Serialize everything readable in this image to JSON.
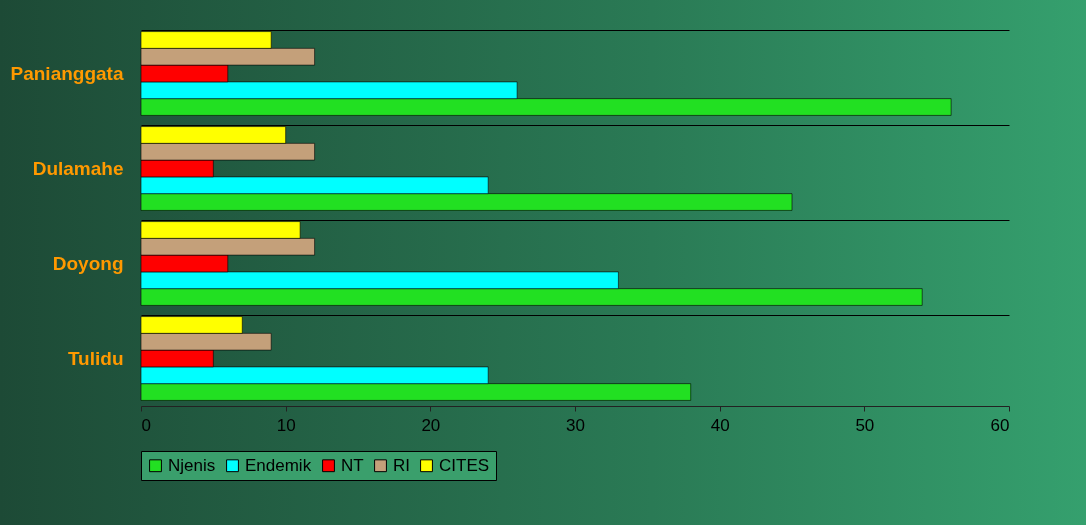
{
  "chart_data": {
    "type": "bar",
    "orientation": "horizontal",
    "categories": [
      "Panianggata",
      "Dulamahe",
      "Doyong",
      "Tulidu"
    ],
    "series": [
      {
        "name": "Njenis",
        "color": "#22e022",
        "values": [
          56,
          45,
          54,
          38
        ]
      },
      {
        "name": "Endemik",
        "color": "#00ffff",
        "values": [
          26,
          24,
          33,
          24
        ]
      },
      {
        "name": "NT",
        "color": "#ff0000",
        "values": [
          6,
          5,
          6,
          5
        ]
      },
      {
        "name": "RI",
        "color": "#c4a07a",
        "values": [
          12,
          12,
          12,
          9
        ]
      },
      {
        "name": "CITES",
        "color": "#ffff00",
        "values": [
          9,
          10,
          11,
          7
        ]
      }
    ],
    "xlim": [
      0,
      60
    ],
    "xticks": [
      0,
      10,
      20,
      30,
      40,
      50,
      60
    ],
    "grid": "y",
    "legend": "bottom"
  }
}
